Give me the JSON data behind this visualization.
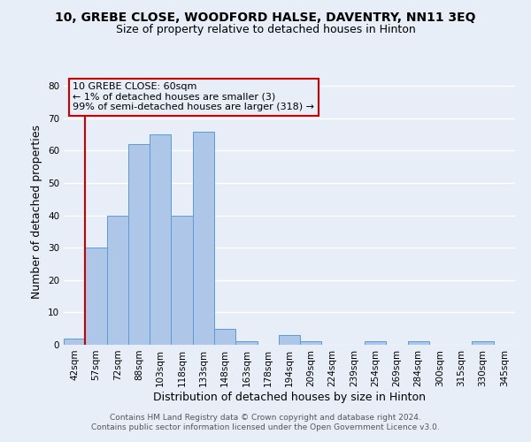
{
  "title": "10, GREBE CLOSE, WOODFORD HALSE, DAVENTRY, NN11 3EQ",
  "subtitle": "Size of property relative to detached houses in Hinton",
  "xlabel": "Distribution of detached houses by size in Hinton",
  "ylabel": "Number of detached properties",
  "bin_labels": [
    "42sqm",
    "57sqm",
    "72sqm",
    "88sqm",
    "103sqm",
    "118sqm",
    "133sqm",
    "148sqm",
    "163sqm",
    "178sqm",
    "194sqm",
    "209sqm",
    "224sqm",
    "239sqm",
    "254sqm",
    "269sqm",
    "284sqm",
    "300sqm",
    "315sqm",
    "330sqm",
    "345sqm"
  ],
  "bar_values": [
    2,
    30,
    40,
    62,
    65,
    40,
    66,
    5,
    1,
    0,
    3,
    1,
    0,
    0,
    1,
    0,
    1,
    0,
    0,
    1,
    0
  ],
  "bar_color": "#aec6e8",
  "bar_edge_color": "#5b9bd5",
  "highlight_line_color": "#cc0000",
  "ylim": [
    0,
    82
  ],
  "yticks": [
    0,
    10,
    20,
    30,
    40,
    50,
    60,
    70,
    80
  ],
  "annotation_box_color": "#cc0000",
  "annotation_text_line1": "10 GREBE CLOSE: 60sqm",
  "annotation_text_line2": "← 1% of detached houses are smaller (3)",
  "annotation_text_line3": "99% of semi-detached houses are larger (318) →",
  "footer_line1": "Contains HM Land Registry data © Crown copyright and database right 2024.",
  "footer_line2": "Contains public sector information licensed under the Open Government Licence v3.0.",
  "background_color": "#e8eef8",
  "grid_color": "#ffffff",
  "title_fontsize": 10,
  "subtitle_fontsize": 9,
  "axis_label_fontsize": 9,
  "tick_fontsize": 7.5,
  "annotation_fontsize": 8,
  "footer_fontsize": 6.5
}
